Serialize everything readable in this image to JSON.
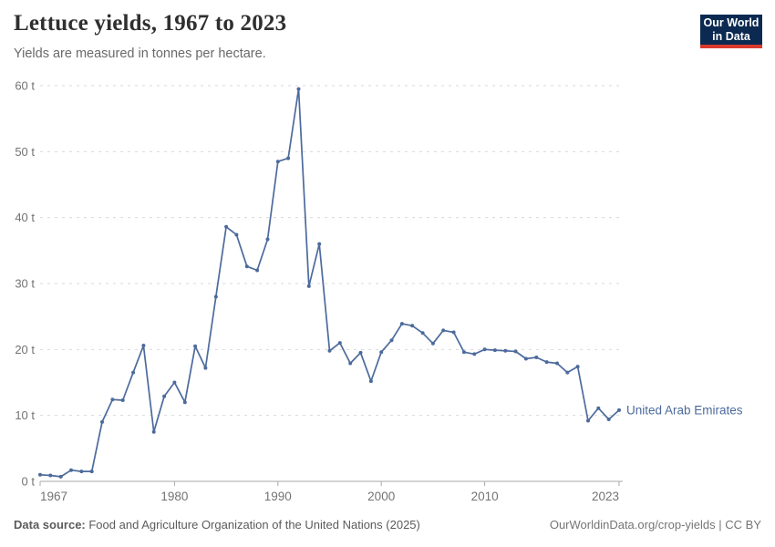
{
  "header": {
    "title": "Lettuce yields, 1967 to 2023",
    "subtitle": "Yields are measured in tonnes per hectare.",
    "logo": {
      "line1": "Our World",
      "line2": "in Data",
      "bg_color": "#0c2a51",
      "accent_color": "#d93a2d",
      "text_color": "#ffffff"
    }
  },
  "chart_data": {
    "type": "line",
    "title": "Lettuce yields, 1967 to 2023",
    "ylabel": "tonnes per hectare",
    "unit_suffix": " t",
    "ylim": [
      0,
      60
    ],
    "yticks": [
      0,
      10,
      20,
      30,
      40,
      50,
      60
    ],
    "xticks": [
      1967,
      1980,
      1990,
      2000,
      2010,
      2023
    ],
    "grid": "horizontal-dashed",
    "legend_position": "end-of-line",
    "theme": {
      "grid_color": "#dadada",
      "axis_color": "#a8a8a8",
      "tick_label_color": "#737373"
    },
    "series": [
      {
        "name": "United Arab Emirates",
        "color": "#4c6a9c",
        "x": [
          1967,
          1968,
          1969,
          1970,
          1971,
          1972,
          1973,
          1974,
          1975,
          1976,
          1977,
          1978,
          1979,
          1980,
          1981,
          1982,
          1983,
          1984,
          1985,
          1986,
          1987,
          1988,
          1989,
          1990,
          1991,
          1992,
          1993,
          1994,
          1995,
          1996,
          1997,
          1998,
          1999,
          2000,
          2001,
          2002,
          2003,
          2004,
          2005,
          2006,
          2007,
          2008,
          2009,
          2010,
          2011,
          2012,
          2013,
          2014,
          2015,
          2016,
          2017,
          2018,
          2019,
          2020,
          2021,
          2022,
          2023
        ],
        "values": [
          1.0,
          0.9,
          0.7,
          1.7,
          1.5,
          1.5,
          9.0,
          12.4,
          12.3,
          16.5,
          20.6,
          7.5,
          12.9,
          15.0,
          12.0,
          20.5,
          17.2,
          28.0,
          38.6,
          37.4,
          32.6,
          32.0,
          36.7,
          48.5,
          49.0,
          59.5,
          29.6,
          36.0,
          19.8,
          21.0,
          17.9,
          19.5,
          15.2,
          19.6,
          21.4,
          23.9,
          23.6,
          22.5,
          20.9,
          22.9,
          22.6,
          19.6,
          19.3,
          20.0,
          19.9,
          19.8,
          19.7,
          18.6,
          18.8,
          18.1,
          17.9,
          16.5,
          17.4,
          9.2,
          11.1,
          9.4,
          10.8
        ]
      }
    ]
  },
  "footer": {
    "source_label": "Data source:",
    "source_text": " Food and Agriculture Organization of the United Nations (2025)",
    "credit": "OurWorldinData.org/crop-yields | CC BY"
  }
}
